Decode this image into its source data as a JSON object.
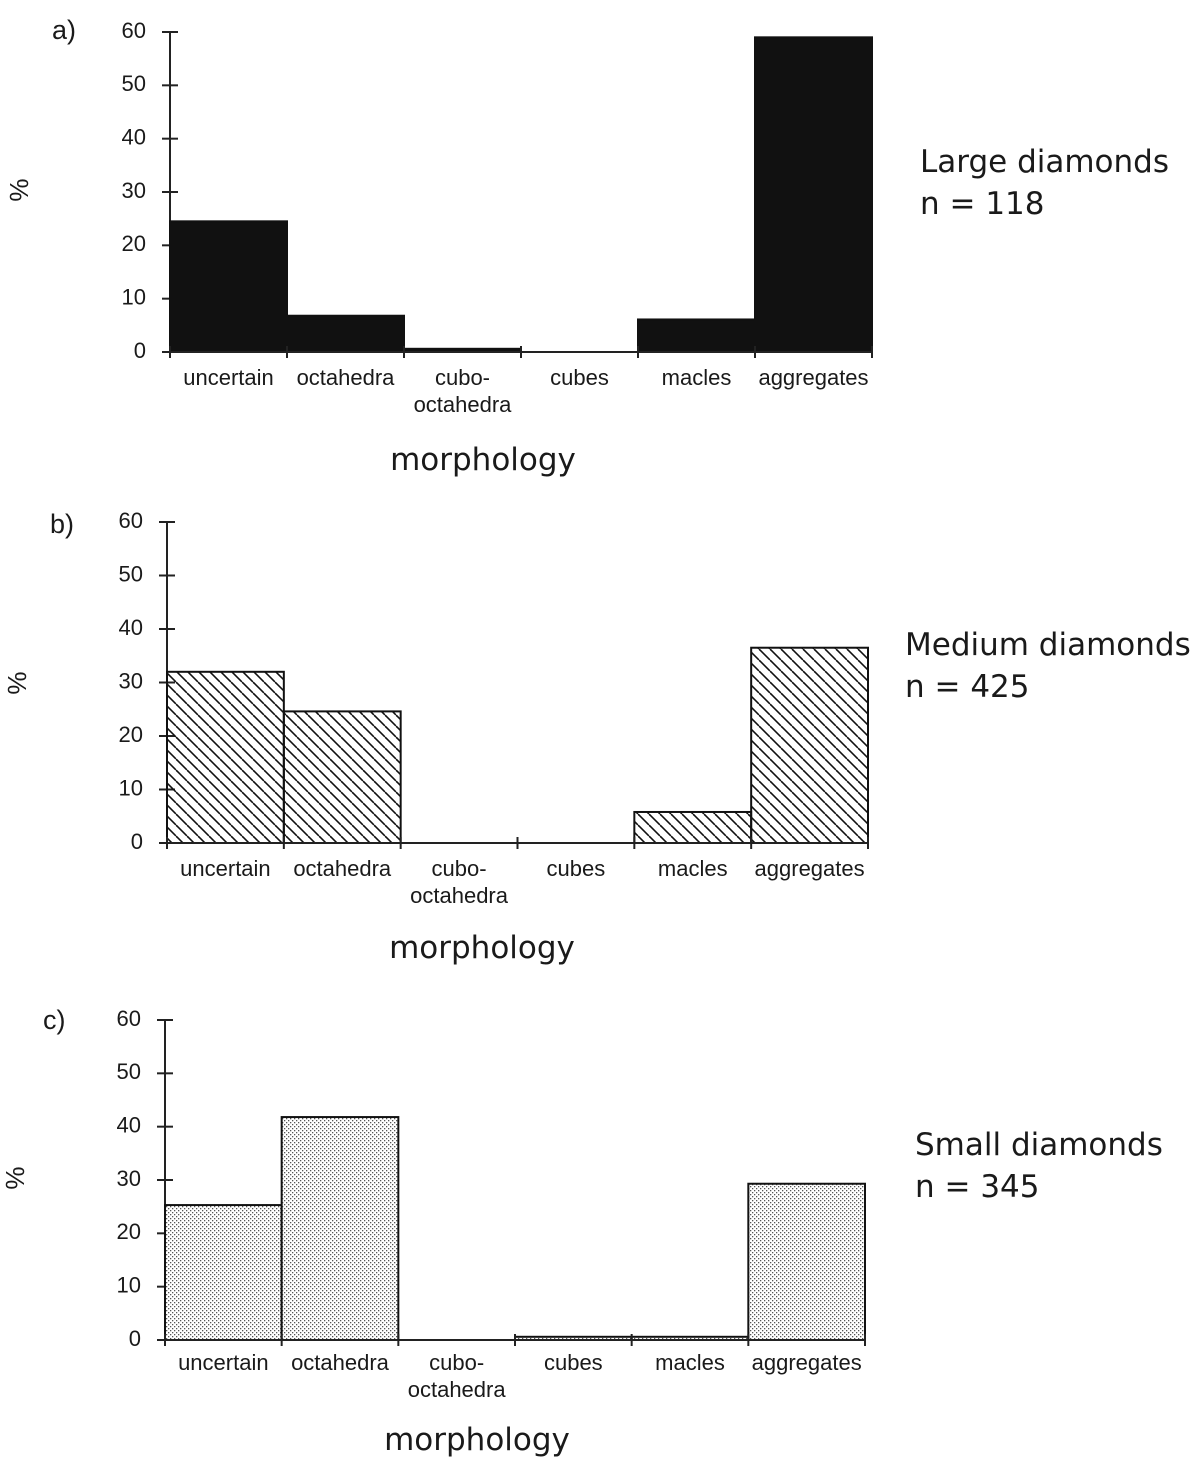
{
  "chart_data": [
    {
      "type": "bar",
      "panel": "a)",
      "ylabel": "%",
      "xlabel": "morphology",
      "categories": [
        "uncertain",
        "octahedra",
        "cubo-\noctahedra",
        "cubes",
        "macles",
        "aggregates"
      ],
      "values": [
        24.5,
        6.8,
        0.6,
        0,
        6.1,
        59
      ],
      "yticks": [
        0,
        10,
        20,
        30,
        40,
        50,
        60
      ],
      "ylim": [
        0,
        60
      ],
      "fill": "solid",
      "color": "#111111",
      "annotation": [
        "Large diamonds",
        "n = 118"
      ],
      "grid": false
    },
    {
      "type": "bar",
      "panel": "b)",
      "ylabel": "%",
      "xlabel": "morphology",
      "categories": [
        "uncertain",
        "octahedra",
        "cubo-\noctahedra",
        "cubes",
        "macles",
        "aggregates"
      ],
      "values": [
        32,
        24.6,
        0,
        0,
        5.8,
        36.5
      ],
      "yticks": [
        0,
        10,
        20,
        30,
        40,
        50,
        60
      ],
      "ylim": [
        0,
        60
      ],
      "fill": "diagonal-hatch",
      "color": "#111111",
      "annotation": [
        "Medium diamonds",
        "n = 425"
      ],
      "grid": false
    },
    {
      "type": "bar",
      "panel": "c)",
      "ylabel": "%",
      "xlabel": "morphology",
      "categories": [
        "uncertain",
        "octahedra",
        "cubo-\noctahedra",
        "cubes",
        "macles",
        "aggregates"
      ],
      "values": [
        25.3,
        41.8,
        0,
        0.6,
        0.6,
        29.3
      ],
      "yticks": [
        0,
        10,
        20,
        30,
        40,
        50,
        60
      ],
      "ylim": [
        0,
        60
      ],
      "fill": "dot-stipple",
      "color": "#111111",
      "annotation": [
        "Small diamonds",
        "n = 345"
      ],
      "grid": false
    }
  ]
}
